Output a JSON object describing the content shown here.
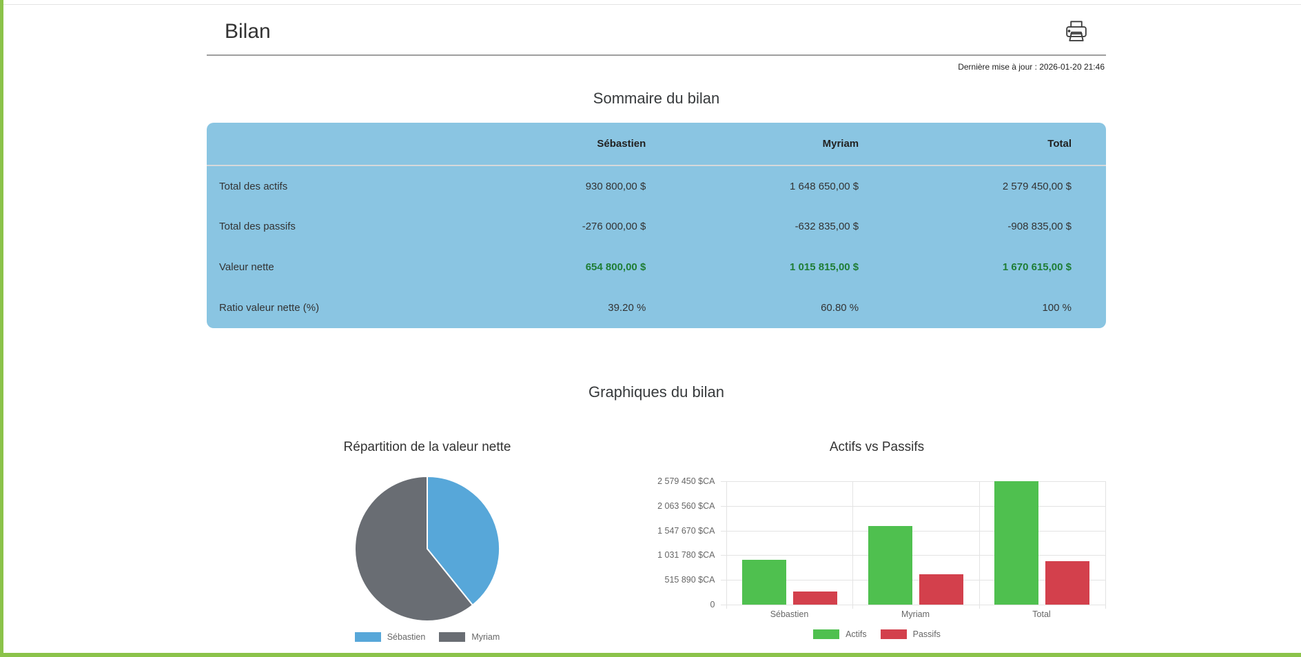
{
  "page": {
    "title": "Bilan",
    "last_update": "Dernière mise à jour : 2026-01-20 21:46"
  },
  "summary": {
    "heading": "Sommaire du bilan",
    "columns": [
      "",
      "Sébastien",
      "Myriam",
      "Total"
    ],
    "rows": [
      {
        "label": "Total des actifs",
        "values": [
          "930 800,00 $",
          "1 648 650,00 $",
          "2 579 450,00 $"
        ],
        "green": false
      },
      {
        "label": "Total des passifs",
        "values": [
          "-276 000,00 $",
          "-632 835,00 $",
          "-908 835,00 $"
        ],
        "green": false
      },
      {
        "label": "Valeur nette",
        "values": [
          "654 800,00 $",
          "1 015 815,00 $",
          "1 670 615,00 $"
        ],
        "green": true
      },
      {
        "label": "Ratio valeur nette (%)",
        "values": [
          "39.20 %",
          "60.80 %",
          "100 %"
        ],
        "green": false
      }
    ]
  },
  "charts_heading": "Graphiques du bilan",
  "chart_data": [
    {
      "type": "pie",
      "title": "Répartition de la valeur nette",
      "labels": [
        "Sébastien",
        "Myriam"
      ],
      "values": [
        39.2,
        60.8
      ],
      "colors": [
        "#57a7d9",
        "#696d73"
      ],
      "legend_position": "bottom"
    },
    {
      "type": "bar",
      "title": "Actifs vs Passifs",
      "categories": [
        "Sébastien",
        "Myriam",
        "Total"
      ],
      "series": [
        {
          "name": "Actifs",
          "values": [
            930800,
            1648650,
            2579450
          ],
          "color": "#4fc04f"
        },
        {
          "name": "Passifs",
          "values": [
            276000,
            632835,
            908835
          ],
          "color": "#d3404c"
        }
      ],
      "y_ticks": [
        "2 579 450 $CA",
        "2 063 560 $CA",
        "1 547 670 $CA",
        "1 031 780 $CA",
        "515 890 $CA",
        "0"
      ],
      "ylim": [
        0,
        2579450
      ],
      "grid": true,
      "legend_position": "bottom"
    }
  ],
  "colors": {
    "page_border_green": "#8bc34a",
    "table_blue": "#8ac5e2",
    "positive_value_green": "#1f7d35"
  }
}
